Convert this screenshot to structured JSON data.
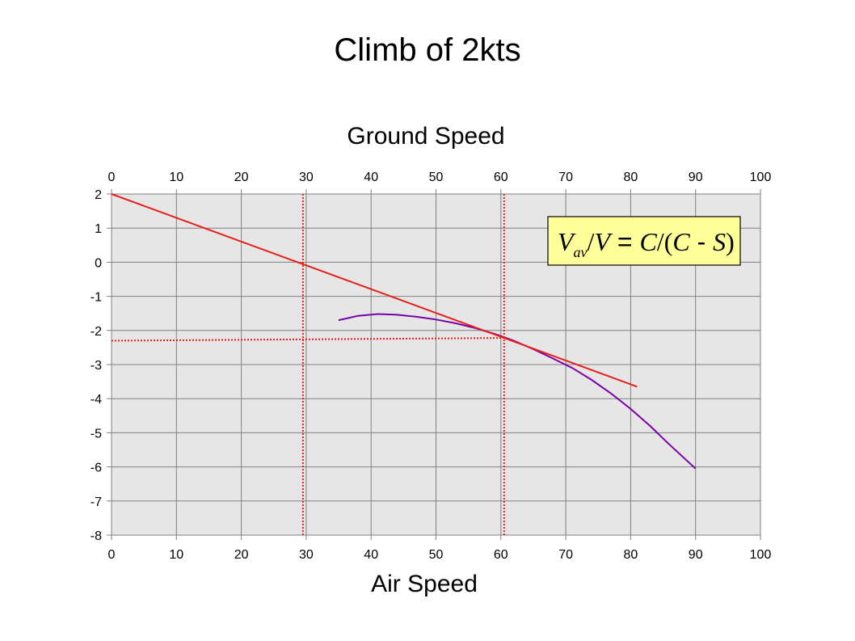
{
  "slide_title": "Climb of 2kts",
  "chart_data": {
    "type": "line",
    "title": "Ground Speed",
    "xlabel": "Air Speed",
    "ylabel": "",
    "xlim": [
      0,
      100
    ],
    "ylim": [
      -8,
      2
    ],
    "x_ticks": [
      0,
      10,
      20,
      30,
      40,
      50,
      60,
      70,
      80,
      90,
      100
    ],
    "y_ticks": [
      2,
      1,
      0,
      -1,
      -2,
      -3,
      -4,
      -5,
      -6,
      -7,
      -8
    ],
    "grid": true,
    "plot_background": "#e6e6e6",
    "x_tick_labels_top_and_bottom": true,
    "series": [
      {
        "color": "#7b00a8",
        "style": "solid",
        "x": [
          35,
          38,
          41,
          44,
          47,
          50,
          53,
          56,
          59,
          62,
          65,
          68,
          71,
          74,
          77,
          80,
          83,
          86,
          90
        ],
        "y": [
          -1.7,
          -1.57,
          -1.52,
          -1.54,
          -1.6,
          -1.68,
          -1.79,
          -1.93,
          -2.1,
          -2.3,
          -2.55,
          -2.82,
          -3.1,
          -3.45,
          -3.85,
          -4.3,
          -4.8,
          -5.35,
          -6.05
        ]
      },
      {
        "color": "#e8201a",
        "style": "solid",
        "x": [
          0,
          81
        ],
        "y": [
          2.0,
          -3.65
        ]
      },
      {
        "color": "#e8201a",
        "style": "dotted",
        "x": [
          29.5,
          29.5
        ],
        "y": [
          2.0,
          -8.0
        ]
      },
      {
        "color": "#e8201a",
        "style": "dotted",
        "x": [
          60.5,
          60.5
        ],
        "y": [
          2.0,
          -8.0
        ]
      },
      {
        "color": "#e8201a",
        "style": "dotted",
        "x": [
          0,
          60.5
        ],
        "y": [
          -2.3,
          -2.22
        ]
      }
    ],
    "annotation": {
      "text_parts": [
        "V",
        "av",
        "/",
        "V",
        " = ",
        "C",
        "/(",
        "C",
        " - ",
        "S",
        ")"
      ],
      "background": "#ffff99"
    }
  }
}
